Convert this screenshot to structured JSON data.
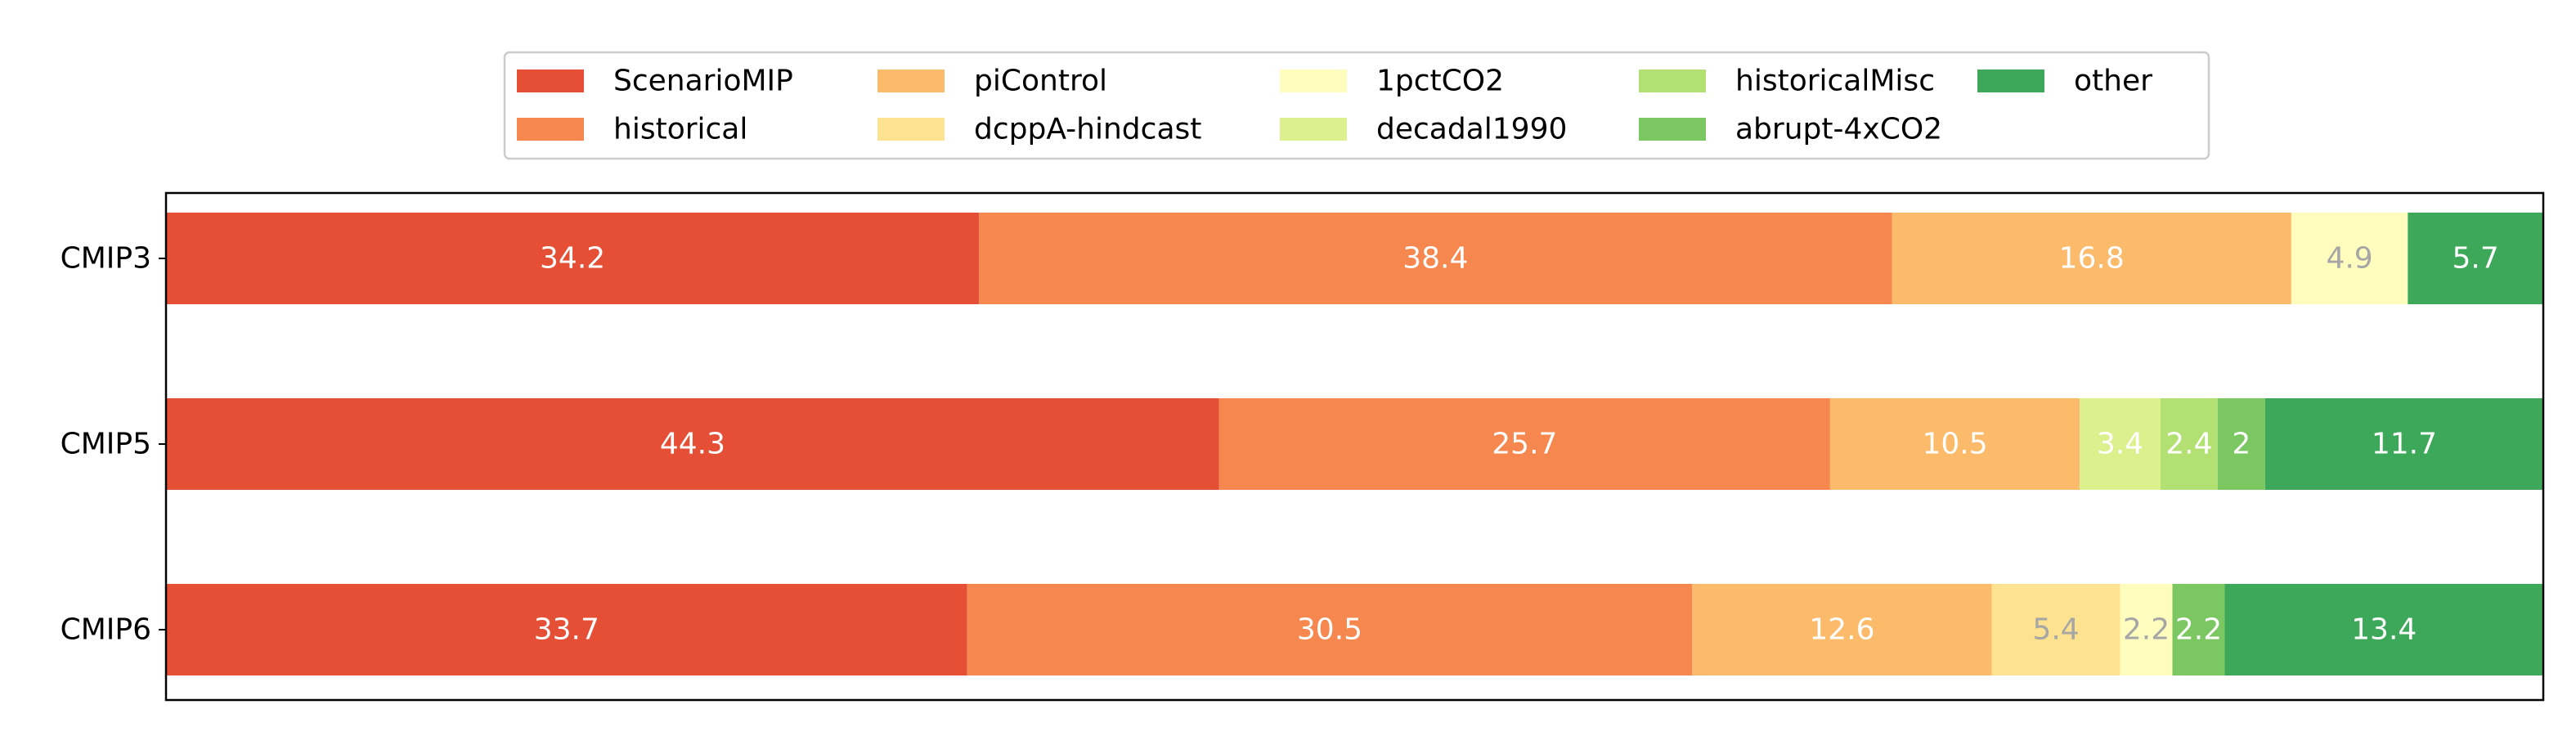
{
  "chart_data": {
    "type": "bar",
    "orientation": "horizontal",
    "stacked": true,
    "categories": [
      "CMIP3",
      "CMIP5",
      "CMIP6"
    ],
    "series": [
      {
        "name": "ScenarioMIP",
        "color": "#e54f36",
        "values": [
          34.2,
          44.3,
          33.7
        ],
        "label_color": "#ffffff"
      },
      {
        "name": "historical",
        "color": "#f6874f",
        "values": [
          38.4,
          25.7,
          30.5
        ],
        "label_color": "#ffffff"
      },
      {
        "name": "piControl",
        "color": "#fcba6b",
        "values": [
          16.8,
          10.5,
          12.6
        ],
        "label_color": "#ffffff"
      },
      {
        "name": "dcppA-hindcast",
        "color": "#fde28f",
        "values": [
          0,
          0,
          5.4
        ],
        "label_color": "#a6a6a6"
      },
      {
        "name": "1pctCO2",
        "color": "#fffdbe",
        "values": [
          4.9,
          0,
          2.2
        ],
        "label_color": "#a6a6a6"
      },
      {
        "name": "decadal1990",
        "color": "#dcf08e",
        "values": [
          0,
          3.4,
          0
        ],
        "label_color": "#ffffff"
      },
      {
        "name": "historicalMisc",
        "color": "#b3e072",
        "values": [
          0,
          2.4,
          0
        ],
        "label_color": "#ffffff"
      },
      {
        "name": "abrupt-4xCO2",
        "color": "#7bc761",
        "values": [
          0,
          2,
          2.2
        ],
        "label_color": "#ffffff"
      },
      {
        "name": "other",
        "color": "#3ea85a",
        "values": [
          5.7,
          11.7,
          13.4
        ],
        "label_color": "#ffffff"
      }
    ],
    "xlim": [
      0,
      100
    ],
    "grid": false,
    "legend_position": "top",
    "legend_columns": 5
  }
}
